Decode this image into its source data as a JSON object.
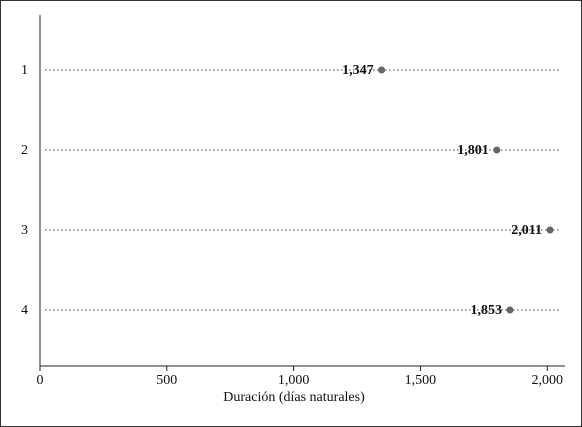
{
  "chart_data": {
    "type": "dot",
    "x_label": "Duración (días naturales)",
    "categories": [
      "1",
      "2",
      "3",
      "4"
    ],
    "values": [
      1347,
      1801,
      2011,
      1853
    ],
    "value_labels": [
      "1,347",
      "1,801",
      "2,011",
      "1,853"
    ],
    "color": "#666666",
    "xlim": [
      0,
      2070
    ],
    "xticks": [
      0,
      500,
      {
        "value": 1000,
        "label": "1,000"
      },
      {
        "value": 1500,
        "label": "1,500"
      },
      {
        "value": 2000,
        "label": "2,000"
      }
    ],
    "grid": true
  }
}
